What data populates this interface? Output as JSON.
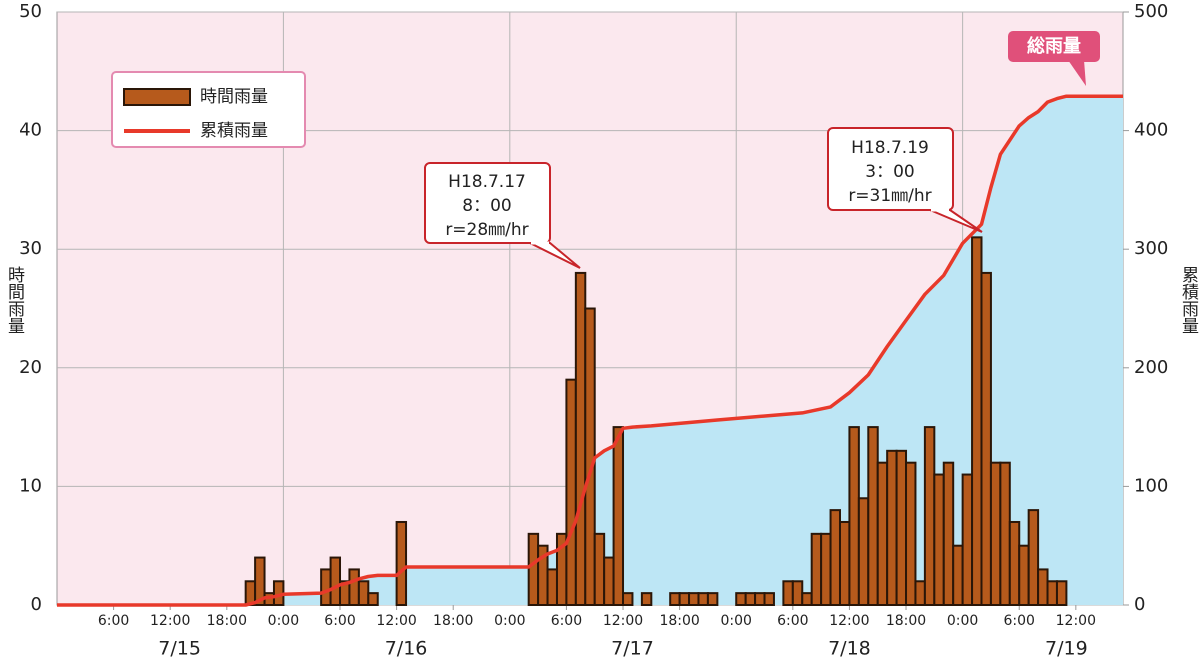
{
  "chart_data": {
    "type": "bar",
    "ylabel": "時間雨量",
    "y2label": "累積雨量",
    "xlim": [
      0,
      113
    ],
    "ylim": [
      0,
      50
    ],
    "yticks": [
      0,
      10,
      20,
      30,
      40,
      50
    ],
    "y2lim": [
      0,
      500
    ],
    "y2ticks": [
      0,
      100,
      200,
      300,
      400,
      500
    ],
    "xticks": [
      {
        "value": 6,
        "label": "6:00"
      },
      {
        "value": 12,
        "label": "12:00"
      },
      {
        "value": 18,
        "label": "18:00"
      },
      {
        "value": 24,
        "label": "0:00"
      },
      {
        "value": 30,
        "label": "6:00"
      },
      {
        "value": 36,
        "label": "12:00"
      },
      {
        "value": 42,
        "label": "18:00"
      },
      {
        "value": 48,
        "label": "0:00"
      },
      {
        "value": 54,
        "label": "6:00"
      },
      {
        "value": 60,
        "label": "12:00"
      },
      {
        "value": 66,
        "label": "18:00"
      },
      {
        "value": 72,
        "label": "0:00"
      },
      {
        "value": 78,
        "label": "6:00"
      },
      {
        "value": 84,
        "label": "12:00"
      },
      {
        "value": 90,
        "label": "18:00"
      },
      {
        "value": 96,
        "label": "0:00"
      },
      {
        "value": 102,
        "label": "6:00"
      },
      {
        "value": 108,
        "label": "12:00"
      }
    ],
    "date_ticks": [
      {
        "value": 13,
        "label": "7/15"
      },
      {
        "value": 37,
        "label": "7/16"
      },
      {
        "value": 61,
        "label": "7/17"
      },
      {
        "value": 84,
        "label": "7/18"
      },
      {
        "value": 107,
        "label": "7/19"
      }
    ],
    "grid": true,
    "legend": "upper left",
    "series": [
      {
        "name": "時間雨量",
        "type": "bar",
        "color": "#b65a1c",
        "x": [
          21,
          22,
          23,
          24,
          29,
          30,
          31,
          32,
          33,
          34,
          37,
          51,
          52,
          53,
          54,
          55,
          56,
          57,
          58,
          59,
          60,
          61,
          63,
          66,
          67,
          68,
          69,
          70,
          73,
          74,
          75,
          76,
          78,
          79,
          80,
          81,
          82,
          83,
          84,
          85,
          86,
          87,
          88,
          89,
          90,
          91,
          92,
          93,
          94,
          95,
          96,
          97,
          98,
          99,
          100,
          101,
          102,
          103,
          104,
          105,
          106,
          107
        ],
        "values": [
          2,
          4,
          1,
          2,
          3,
          4,
          2,
          3,
          2,
          1,
          7,
          6,
          5,
          3,
          6,
          19,
          28,
          25,
          6,
          4,
          15,
          1,
          1,
          1,
          1,
          1,
          1,
          1,
          1,
          1,
          1,
          1,
          2,
          2,
          1,
          6,
          6,
          8,
          7,
          15,
          9,
          15,
          12,
          13,
          13,
          12,
          2,
          15,
          11,
          12,
          5,
          11,
          31,
          28,
          12,
          12,
          7,
          5,
          8,
          3,
          2,
          2
        ]
      },
      {
        "name": "累積雨量",
        "type": "line",
        "axis": "y2",
        "color": "#e8392a",
        "area_color": "#bde6f5",
        "x": [
          0,
          20,
          21,
          22,
          23,
          24,
          28,
          29,
          30,
          31,
          32,
          33,
          34,
          36,
          37,
          50,
          51,
          52,
          53,
          54,
          55,
          56,
          57,
          58,
          59,
          60,
          61,
          63,
          70,
          76,
          79,
          82,
          84,
          86,
          88,
          90,
          92,
          94,
          96,
          98,
          99,
          100,
          101,
          102,
          103,
          104,
          105,
          106,
          107,
          113
        ],
        "values": [
          0,
          0,
          2,
          6,
          7,
          9,
          10,
          13,
          17,
          19,
          22,
          24,
          25,
          25,
          32,
          32,
          38,
          43,
          46,
          52,
          71,
          99,
          124,
          130,
          134,
          149,
          150,
          151,
          156,
          160,
          162,
          167,
          179,
          194,
          218,
          240,
          262,
          278,
          305,
          321,
          352,
          380,
          392,
          404,
          411,
          416,
          424,
          427,
          429,
          429
        ]
      }
    ],
    "annotations": [
      {
        "lines": [
          "H18.7.17",
          "8：00",
          "r=28㎜/hr"
        ]
      },
      {
        "lines": [
          "H18.7.19",
          "3：00",
          "r=31㎜/hr"
        ]
      },
      {
        "lines": [
          "総雨量"
        ]
      }
    ]
  }
}
